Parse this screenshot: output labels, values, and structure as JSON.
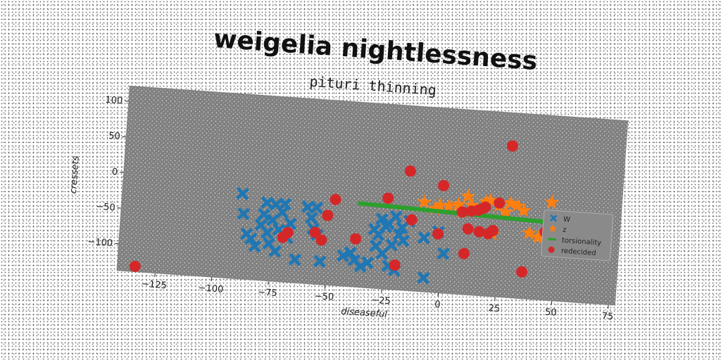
{
  "chart_data": {
    "type": "scatter",
    "title": "weigelia nightlessness",
    "subtitle": "pituri thinning",
    "xlabel": "diseaseful",
    "ylabel": "cressets",
    "xlim": [
      -142,
      78
    ],
    "ylim": [
      -138,
      122
    ],
    "xticks": [
      -125,
      -100,
      -75,
      -50,
      -25,
      0,
      25,
      50,
      75
    ],
    "yticks": [
      100,
      50,
      0,
      -50,
      -100
    ],
    "grid": false,
    "legend_position": "right",
    "colors": {
      "plot_bg": "#808080",
      "W": "#1f77b4",
      "z": "#ff7f0e",
      "torsionality": "#2ca02c",
      "redecided": "#d62728"
    },
    "series": [
      {
        "name": "W",
        "marker": "X",
        "points": [
          [
            -89,
            -18
          ],
          [
            -88,
            -46
          ],
          [
            -86,
            -74
          ],
          [
            -84,
            -80
          ],
          [
            -82,
            -90
          ],
          [
            -80,
            -60
          ],
          [
            -79,
            -45
          ],
          [
            -78,
            -28
          ],
          [
            -77,
            -70
          ],
          [
            -76,
            -85
          ],
          [
            -75,
            -52
          ],
          [
            -74,
            -30
          ],
          [
            -73,
            -95
          ],
          [
            -72,
            -65
          ],
          [
            -71,
            -40
          ],
          [
            -70,
            -28
          ],
          [
            -68,
            -75
          ],
          [
            -67,
            -55
          ],
          [
            -64,
            -105
          ],
          [
            -60,
            -30
          ],
          [
            -58,
            -45
          ],
          [
            -57,
            -60
          ],
          [
            -56,
            -30
          ],
          [
            -55,
            -68
          ],
          [
            -53,
            -105
          ],
          [
            -43,
            -95
          ],
          [
            -40,
            -90
          ],
          [
            -38,
            -100
          ],
          [
            -35,
            -108
          ],
          [
            -32,
            -102
          ],
          [
            -30,
            -55
          ],
          [
            -29,
            -78
          ],
          [
            -28,
            -62
          ],
          [
            -27,
            -40
          ],
          [
            -26,
            -88
          ],
          [
            -25,
            -50
          ],
          [
            -24,
            -45
          ],
          [
            -23,
            -105
          ],
          [
            -22,
            -75
          ],
          [
            -21,
            -35
          ],
          [
            -20,
            -110
          ],
          [
            -19,
            -60
          ],
          [
            -18,
            -50
          ],
          [
            -17,
            -68
          ],
          [
            -15,
            -40
          ],
          [
            -8,
            -62
          ],
          [
            -7,
            -118
          ],
          [
            -2,
            -52
          ],
          [
            1,
            -82
          ]
        ]
      },
      {
        "name": "z",
        "marker": "star",
        "points": [
          [
            -9,
            -12
          ],
          [
            -4,
            -20
          ],
          [
            -2,
            -15
          ],
          [
            2,
            -15
          ],
          [
            6,
            -12
          ],
          [
            8,
            -22
          ],
          [
            10,
            0
          ],
          [
            12,
            -12
          ],
          [
            14,
            -18
          ],
          [
            18,
            -6
          ],
          [
            20,
            -3
          ],
          [
            22,
            -50
          ],
          [
            24,
            -10
          ],
          [
            27,
            -18
          ],
          [
            29,
            -5
          ],
          [
            32,
            -8
          ],
          [
            35,
            -14
          ],
          [
            38,
            -45
          ],
          [
            42,
            -50
          ],
          [
            45,
            -48
          ],
          [
            47,
            0
          ]
        ]
      },
      {
        "name": "torsionality",
        "marker": "line",
        "x": [
          -38,
          46
        ],
        "y": [
          -20,
          -28
        ]
      },
      {
        "name": "redecided",
        "marker": "circle",
        "points": [
          [
            -134,
            -130
          ],
          [
            -70,
            -75
          ],
          [
            -68,
            -68
          ],
          [
            -56,
            -65
          ],
          [
            -53,
            -75
          ],
          [
            -51,
            -40
          ],
          [
            -48,
            -17
          ],
          [
            -38,
            -70
          ],
          [
            -25,
            -10
          ],
          [
            -20,
            -103
          ],
          [
            -16,
            30
          ],
          [
            -14,
            -38
          ],
          [
            -2,
            -55
          ],
          [
            -1,
            13
          ],
          [
            8,
            -22
          ],
          [
            10,
            -80
          ],
          [
            11,
            -45
          ],
          [
            12,
            -20
          ],
          [
            15,
            -18
          ],
          [
            16,
            -48
          ],
          [
            17,
            -15
          ],
          [
            18,
            -13
          ],
          [
            20,
            -50
          ],
          [
            22,
            -45
          ],
          [
            24,
            -6
          ],
          [
            28,
            75
          ],
          [
            36,
            -100
          ],
          [
            45,
            -42
          ],
          [
            47,
            -63
          ]
        ]
      }
    ]
  }
}
